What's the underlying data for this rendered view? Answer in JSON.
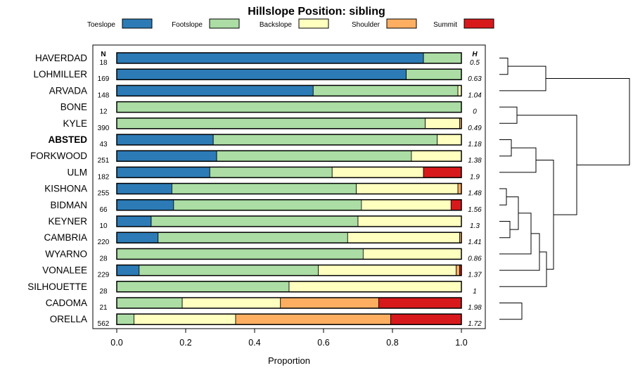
{
  "chart_data": {
    "type": "bar",
    "orientation": "horizontal",
    "stacked": true,
    "title": "Hillslope Position: sibling",
    "xlabel": "Proportion",
    "xlim": [
      0,
      1
    ],
    "xticks": [
      "0.0",
      "0.2",
      "0.4",
      "0.6",
      "0.8",
      "1.0"
    ],
    "xtick_values": [
      0,
      0.2,
      0.4,
      0.6,
      0.8,
      1.0
    ],
    "n_header": "N",
    "h_header": "H",
    "legend": [
      {
        "name": "Toeslope",
        "color": "#2c7bb6"
      },
      {
        "name": "Footslope",
        "color": "#abdda4"
      },
      {
        "name": "Backslope",
        "color": "#ffffbf"
      },
      {
        "name": "Shoulder",
        "color": "#fdae61"
      },
      {
        "name": "Summit",
        "color": "#d7191c"
      }
    ],
    "rows": [
      {
        "name": "HAVERDAD",
        "n": "18",
        "h": "0.5",
        "bold": false,
        "values": [
          0.89,
          0.11,
          0,
          0,
          0
        ]
      },
      {
        "name": "LOHMILLER",
        "n": "169",
        "h": "0.63",
        "bold": false,
        "values": [
          0.84,
          0.16,
          0,
          0,
          0
        ]
      },
      {
        "name": "ARVADA",
        "n": "148",
        "h": "1.04",
        "bold": false,
        "values": [
          0.57,
          0.42,
          0.01,
          0,
          0
        ]
      },
      {
        "name": "BONE",
        "n": "12",
        "h": "0",
        "bold": false,
        "values": [
          0,
          1.0,
          0,
          0,
          0
        ]
      },
      {
        "name": "KYLE",
        "n": "390",
        "h": "0.49",
        "bold": false,
        "values": [
          0,
          0.895,
          0.1,
          0.005,
          0
        ]
      },
      {
        "name": "ABSTED",
        "n": "43",
        "h": "1.18",
        "bold": true,
        "values": [
          0.28,
          0.65,
          0.07,
          0,
          0
        ]
      },
      {
        "name": "FORKWOOD",
        "n": "251",
        "h": "1.38",
        "bold": false,
        "values": [
          0.29,
          0.565,
          0.145,
          0,
          0
        ]
      },
      {
        "name": "ULM",
        "n": "182",
        "h": "1.9",
        "bold": false,
        "values": [
          0.27,
          0.355,
          0.265,
          0,
          0.11
        ]
      },
      {
        "name": "KISHONA",
        "n": "255",
        "h": "1.48",
        "bold": false,
        "values": [
          0.16,
          0.535,
          0.295,
          0.01,
          0
        ]
      },
      {
        "name": "BIDMAN",
        "n": "66",
        "h": "1.56",
        "bold": false,
        "values": [
          0.165,
          0.545,
          0.26,
          0,
          0.03
        ]
      },
      {
        "name": "KEYNER",
        "n": "10",
        "h": "1.3",
        "bold": false,
        "values": [
          0.1,
          0.6,
          0.3,
          0,
          0
        ]
      },
      {
        "name": "CAMBRIA",
        "n": "220",
        "h": "1.41",
        "bold": false,
        "values": [
          0.12,
          0.55,
          0.325,
          0.005,
          0
        ]
      },
      {
        "name": "WYARNO",
        "n": "28",
        "h": "0.86",
        "bold": false,
        "values": [
          0,
          0.715,
          0.285,
          0,
          0
        ]
      },
      {
        "name": "VONALEE",
        "n": "229",
        "h": "1.37",
        "bold": false,
        "values": [
          0.065,
          0.52,
          0.4,
          0.01,
          0.005
        ]
      },
      {
        "name": "SILHOUETTE",
        "n": "28",
        "h": "1",
        "bold": false,
        "values": [
          0,
          0.5,
          0.5,
          0,
          0
        ]
      },
      {
        "name": "CADOMA",
        "n": "21",
        "h": "1.98",
        "bold": false,
        "values": [
          0,
          0.19,
          0.285,
          0.285,
          0.24
        ]
      },
      {
        "name": "ORELLA",
        "n": "562",
        "h": "1.72",
        "bold": false,
        "values": [
          0,
          0.05,
          0.295,
          0.45,
          0.205
        ]
      }
    ]
  }
}
